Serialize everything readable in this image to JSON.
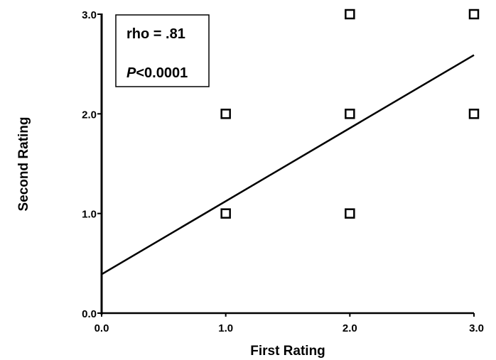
{
  "chart_data": {
    "type": "scatter",
    "xlabel": "First Rating",
    "ylabel": "Second Rating",
    "xlim": [
      0,
      3
    ],
    "ylim": [
      0,
      3
    ],
    "x_ticks": [
      "0.0",
      "1.0",
      "2.0",
      "3.0"
    ],
    "y_ticks": [
      "0.0",
      "1.0",
      "2.0",
      "3.0"
    ],
    "points": [
      {
        "x": 1,
        "y": 1
      },
      {
        "x": 1,
        "y": 2
      },
      {
        "x": 2,
        "y": 1
      },
      {
        "x": 2,
        "y": 2
      },
      {
        "x": 2,
        "y": 3
      },
      {
        "x": 3,
        "y": 2
      },
      {
        "x": 3,
        "y": 3
      }
    ],
    "regression_line": {
      "x0": 0,
      "y0": 0.39,
      "x1": 3,
      "y1": 2.59
    },
    "annotation": {
      "rho": "rho = .81",
      "p_symbol": "P",
      "p_value": "<0.0001"
    },
    "grid": false,
    "marker": "open-square"
  }
}
